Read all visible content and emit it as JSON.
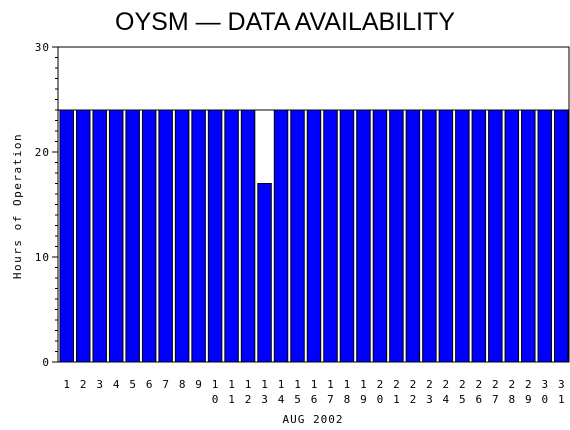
{
  "chart_data": {
    "type": "bar",
    "title": "OYSM  —  DATA AVAILABILITY",
    "xlabel": "AUG 2002",
    "ylabel": "Hours of Operation",
    "ylim": [
      0,
      30
    ],
    "yticks": [
      0,
      10,
      20,
      30
    ],
    "categories": [
      "1",
      "2",
      "3",
      "4",
      "5",
      "6",
      "7",
      "8",
      "9",
      "10",
      "11",
      "12",
      "13",
      "14",
      "15",
      "16",
      "17",
      "18",
      "19",
      "20",
      "21",
      "22",
      "23",
      "24",
      "25",
      "26",
      "27",
      "28",
      "29",
      "30",
      "31"
    ],
    "values": [
      24,
      24,
      24,
      24,
      24,
      24,
      24,
      24,
      24,
      24,
      24,
      24,
      17,
      24,
      24,
      24,
      24,
      24,
      24,
      24,
      24,
      24,
      24,
      24,
      24,
      24,
      24,
      24,
      24,
      24,
      24
    ],
    "bar_color": "#0000ff",
    "grid": false,
    "reference_line": 24
  }
}
